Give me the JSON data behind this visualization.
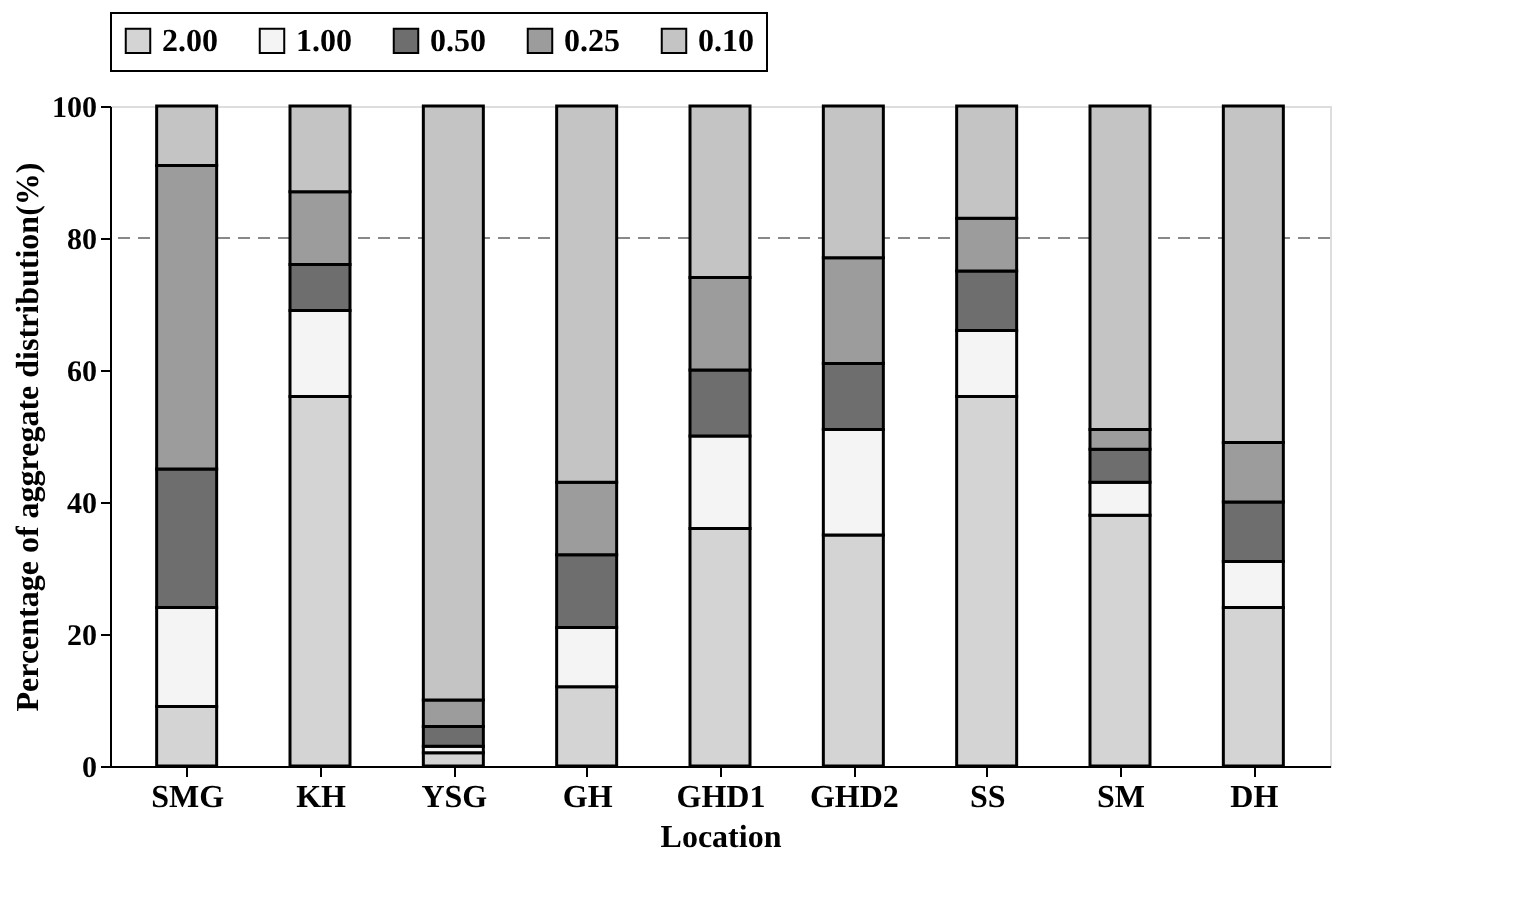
{
  "chart_data": {
    "type": "bar",
    "stacked": true,
    "xlabel": "Location",
    "ylabel": "Percentage of aggregate distribution(%)",
    "categories": [
      "SMG",
      "KH",
      "YSG",
      "GH",
      "GHD1",
      "GHD2",
      "SS",
      "SM",
      "DH"
    ],
    "series": [
      {
        "name": "2.00",
        "color": "#d4d4d4",
        "values": [
          9,
          56,
          2,
          12,
          36,
          35,
          56,
          38,
          24
        ]
      },
      {
        "name": "1.00",
        "color": "#f4f4f4",
        "values": [
          15,
          13,
          1,
          9,
          14,
          16,
          10,
          5,
          7
        ]
      },
      {
        "name": "0.50",
        "color": "#6e6e6e",
        "values": [
          21,
          7,
          3,
          11,
          10,
          10,
          9,
          5,
          9
        ]
      },
      {
        "name": "0.25",
        "color": "#9c9c9c",
        "values": [
          46,
          11,
          4,
          11,
          14,
          16,
          8,
          3,
          9
        ]
      },
      {
        "name": "0.10",
        "color": "#c4c4c4",
        "values": [
          9,
          13,
          90,
          57,
          26,
          23,
          17,
          49,
          51
        ]
      }
    ],
    "ylim": [
      0,
      100
    ],
    "yticks": [
      0,
      20,
      40,
      60,
      80,
      100
    ],
    "ref_lines": [
      {
        "axis": "y",
        "value": 80,
        "color": "#888888",
        "line_style": "dashed"
      }
    ],
    "legend": "top",
    "grid": false
  }
}
